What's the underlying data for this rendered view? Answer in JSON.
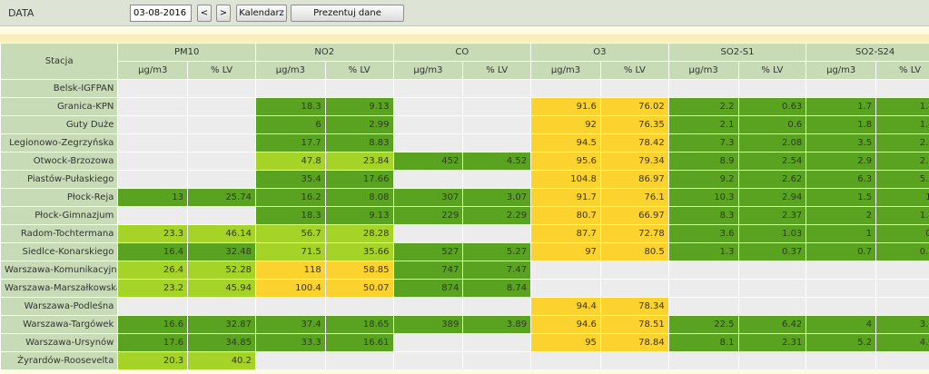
{
  "toolbar": {
    "date_label": "DATA",
    "date_value": "03-08-2016",
    "prev_label": "<",
    "next_label": ">",
    "calendar_label": "Kalendarz",
    "show_label": "Prezentuj dane"
  },
  "table": {
    "station_header": "Stacja",
    "pollutants": [
      {
        "name": "PM10",
        "unit": "µg/m3",
        "lv": "% LV"
      },
      {
        "name": "NO2",
        "unit": "µg/m3",
        "lv": "% LV"
      },
      {
        "name": "CO",
        "unit": "µg/m3",
        "lv": "% LV"
      },
      {
        "name": "O3",
        "unit": "µg/m3",
        "lv": "% LV"
      },
      {
        "name": "SO2-S1",
        "unit": "µg/m3",
        "lv": "% LV"
      },
      {
        "name": "SO2-S24",
        "unit": "µg/m3",
        "lv": "% LV"
      }
    ],
    "level_colors": {
      "green": "#5aa321",
      "lime": "#a6d327",
      "yellow": "#fbd22e",
      "empty": "#ececec"
    },
    "rows": [
      {
        "station": "Belsk-IGFPAN",
        "cells": [
          {
            "v": "",
            "p": "",
            "c": "empty"
          },
          {
            "v": "",
            "p": "",
            "c": "empty"
          },
          {
            "v": "",
            "p": "",
            "c": "empty"
          },
          {
            "v": "",
            "p": "",
            "c": "empty"
          },
          {
            "v": "",
            "p": "",
            "c": "empty"
          },
          {
            "v": "",
            "p": "",
            "c": "empty"
          }
        ]
      },
      {
        "station": "Granica-KPN",
        "cells": [
          {
            "v": "",
            "p": "",
            "c": "empty"
          },
          {
            "v": "18.3",
            "p": "9.13",
            "c": "green"
          },
          {
            "v": "",
            "p": "",
            "c": "empty"
          },
          {
            "v": "91.6",
            "p": "76.02",
            "c": "yellow"
          },
          {
            "v": "2.2",
            "p": "0.63",
            "c": "green"
          },
          {
            "v": "1.7",
            "p": "1.35",
            "c": "green"
          }
        ]
      },
      {
        "station": "Guty Duże",
        "cells": [
          {
            "v": "",
            "p": "",
            "c": "empty"
          },
          {
            "v": "6",
            "p": "2.99",
            "c": "green"
          },
          {
            "v": "",
            "p": "",
            "c": "empty"
          },
          {
            "v": "92",
            "p": "76.35",
            "c": "yellow"
          },
          {
            "v": "2.1",
            "p": "0.6",
            "c": "green"
          },
          {
            "v": "1.8",
            "p": "1.43",
            "c": "green"
          }
        ]
      },
      {
        "station": "Legionowo-Zegrzyńska",
        "cells": [
          {
            "v": "",
            "p": "",
            "c": "empty"
          },
          {
            "v": "17.7",
            "p": "8.83",
            "c": "green"
          },
          {
            "v": "",
            "p": "",
            "c": "empty"
          },
          {
            "v": "94.5",
            "p": "78.42",
            "c": "yellow"
          },
          {
            "v": "7.3",
            "p": "2.08",
            "c": "green"
          },
          {
            "v": "3.5",
            "p": "2.79",
            "c": "green"
          }
        ]
      },
      {
        "station": "Otwock-Brzozowa",
        "cells": [
          {
            "v": "",
            "p": "",
            "c": "empty"
          },
          {
            "v": "47.8",
            "p": "23.84",
            "c": "lime"
          },
          {
            "v": "452",
            "p": "4.52",
            "c": "green"
          },
          {
            "v": "95.6",
            "p": "79.34",
            "c": "yellow"
          },
          {
            "v": "8.9",
            "p": "2.54",
            "c": "green"
          },
          {
            "v": "2.9",
            "p": "2.31",
            "c": "green"
          }
        ]
      },
      {
        "station": "Piastów-Pułaskiego",
        "cells": [
          {
            "v": "",
            "p": "",
            "c": "empty"
          },
          {
            "v": "35.4",
            "p": "17.66",
            "c": "green"
          },
          {
            "v": "",
            "p": "",
            "c": "empty"
          },
          {
            "v": "104.8",
            "p": "86.97",
            "c": "yellow"
          },
          {
            "v": "9.2",
            "p": "2.62",
            "c": "green"
          },
          {
            "v": "6.3",
            "p": "5.02",
            "c": "green"
          }
        ]
      },
      {
        "station": "Płock-Reja",
        "cells": [
          {
            "v": "13",
            "p": "25.74",
            "c": "green"
          },
          {
            "v": "16.2",
            "p": "8.08",
            "c": "green"
          },
          {
            "v": "307",
            "p": "3.07",
            "c": "green"
          },
          {
            "v": "91.7",
            "p": "76.1",
            "c": "yellow"
          },
          {
            "v": "10.3",
            "p": "2.94",
            "c": "green"
          },
          {
            "v": "1.5",
            "p": "1.2",
            "c": "green"
          }
        ]
      },
      {
        "station": "Płock-Gimnazjum",
        "cells": [
          {
            "v": "",
            "p": "",
            "c": "empty"
          },
          {
            "v": "18.3",
            "p": "9.13",
            "c": "green"
          },
          {
            "v": "229",
            "p": "2.29",
            "c": "green"
          },
          {
            "v": "80.7",
            "p": "66.97",
            "c": "yellow"
          },
          {
            "v": "8.3",
            "p": "2.37",
            "c": "green"
          },
          {
            "v": "2",
            "p": "1.59",
            "c": "green"
          }
        ]
      },
      {
        "station": "Radom-Tochtermana",
        "cells": [
          {
            "v": "23.3",
            "p": "46.14",
            "c": "lime"
          },
          {
            "v": "56.7",
            "p": "28.28",
            "c": "lime"
          },
          {
            "v": "",
            "p": "",
            "c": "empty"
          },
          {
            "v": "87.7",
            "p": "72.78",
            "c": "yellow"
          },
          {
            "v": "3.6",
            "p": "1.03",
            "c": "green"
          },
          {
            "v": "1",
            "p": "0.8",
            "c": "green"
          }
        ]
      },
      {
        "station": "Siedlce-Konarskiego",
        "cells": [
          {
            "v": "16.4",
            "p": "32.48",
            "c": "green"
          },
          {
            "v": "71.5",
            "p": "35.66",
            "c": "lime"
          },
          {
            "v": "527",
            "p": "5.27",
            "c": "green"
          },
          {
            "v": "97",
            "p": "80.5",
            "c": "yellow"
          },
          {
            "v": "1.3",
            "p": "0.37",
            "c": "green"
          },
          {
            "v": "0.7",
            "p": "0.56",
            "c": "green"
          }
        ]
      },
      {
        "station": "Warszawa-Komunikacyjna",
        "cells": [
          {
            "v": "26.4",
            "p": "52.28",
            "c": "lime"
          },
          {
            "v": "118",
            "p": "58.85",
            "c": "yellow"
          },
          {
            "v": "747",
            "p": "7.47",
            "c": "green"
          },
          {
            "v": "",
            "p": "",
            "c": "empty"
          },
          {
            "v": "",
            "p": "",
            "c": "empty"
          },
          {
            "v": "",
            "p": "",
            "c": "empty"
          }
        ]
      },
      {
        "station": "Warszawa-Marszałkowska",
        "cells": [
          {
            "v": "23.2",
            "p": "45.94",
            "c": "lime"
          },
          {
            "v": "100.4",
            "p": "50.07",
            "c": "yellow"
          },
          {
            "v": "874",
            "p": "8.74",
            "c": "green"
          },
          {
            "v": "",
            "p": "",
            "c": "empty"
          },
          {
            "v": "",
            "p": "",
            "c": "empty"
          },
          {
            "v": "",
            "p": "",
            "c": "empty"
          }
        ]
      },
      {
        "station": "Warszawa-Podleśna",
        "cells": [
          {
            "v": "",
            "p": "",
            "c": "empty"
          },
          {
            "v": "",
            "p": "",
            "c": "empty"
          },
          {
            "v": "",
            "p": "",
            "c": "empty"
          },
          {
            "v": "94.4",
            "p": "78.34",
            "c": "yellow"
          },
          {
            "v": "",
            "p": "",
            "c": "empty"
          },
          {
            "v": "",
            "p": "",
            "c": "empty"
          }
        ]
      },
      {
        "station": "Warszawa-Targówek",
        "cells": [
          {
            "v": "16.6",
            "p": "32.87",
            "c": "green"
          },
          {
            "v": "37.4",
            "p": "18.65",
            "c": "green"
          },
          {
            "v": "389",
            "p": "3.89",
            "c": "green"
          },
          {
            "v": "94.6",
            "p": "78.51",
            "c": "yellow"
          },
          {
            "v": "22.5",
            "p": "6.42",
            "c": "green"
          },
          {
            "v": "4",
            "p": "3.19",
            "c": "green"
          }
        ]
      },
      {
        "station": "Warszawa-Ursynów",
        "cells": [
          {
            "v": "17.6",
            "p": "34.85",
            "c": "green"
          },
          {
            "v": "33.3",
            "p": "16.61",
            "c": "green"
          },
          {
            "v": "",
            "p": "",
            "c": "empty"
          },
          {
            "v": "95",
            "p": "78.84",
            "c": "yellow"
          },
          {
            "v": "8.1",
            "p": "2.31",
            "c": "green"
          },
          {
            "v": "5.2",
            "p": "4.14",
            "c": "green"
          }
        ]
      },
      {
        "station": "Żyrardów-Roosevelta",
        "cells": [
          {
            "v": "20.3",
            "p": "40.2",
            "c": "lime"
          },
          {
            "v": "",
            "p": "",
            "c": "empty"
          },
          {
            "v": "",
            "p": "",
            "c": "empty"
          },
          {
            "v": "",
            "p": "",
            "c": "empty"
          },
          {
            "v": "",
            "p": "",
            "c": "empty"
          },
          {
            "v": "",
            "p": "",
            "c": "empty"
          }
        ]
      }
    ]
  }
}
